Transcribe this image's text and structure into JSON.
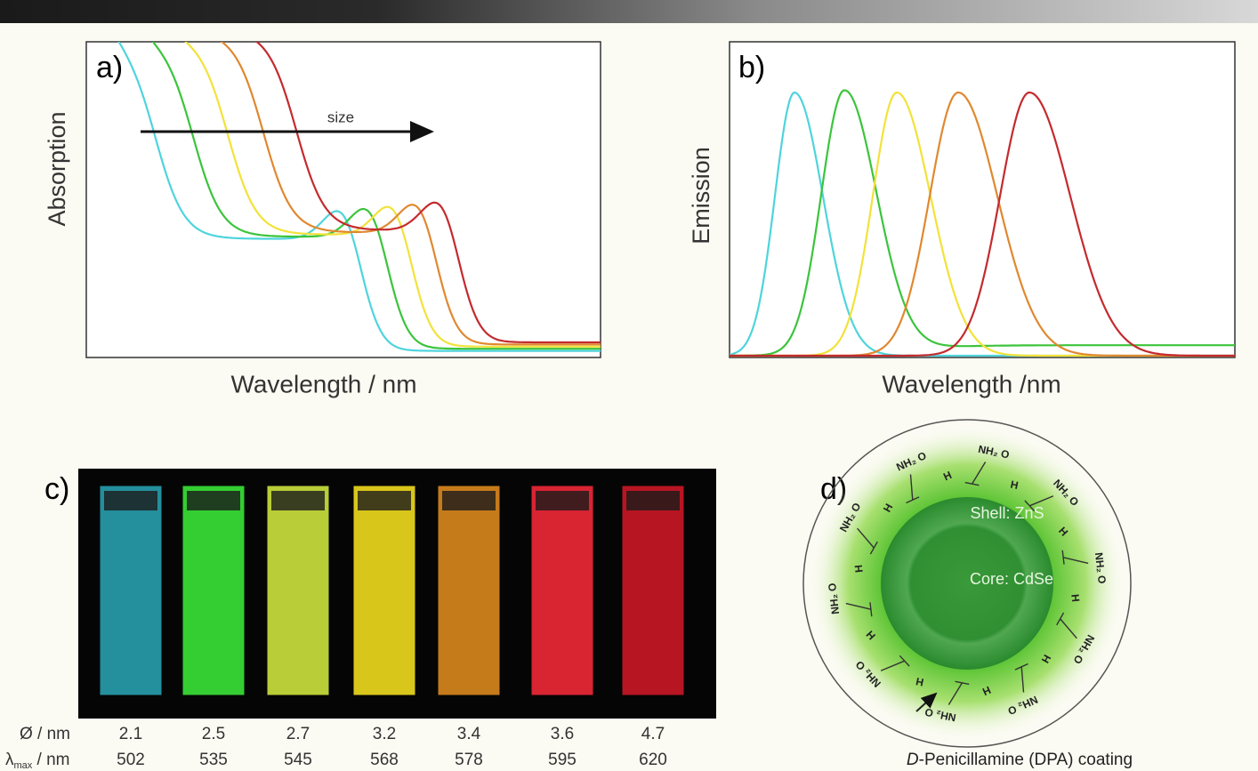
{
  "panel_a": {
    "label": "a)",
    "y_label": "Absorption",
    "x_label": "Wavelength / nm",
    "arrow_label": "size"
  },
  "panel_b": {
    "label": "b)",
    "y_label": "Emission",
    "x_label": "Wavelength /nm"
  },
  "panel_c": {
    "label": "c)",
    "diameter_label": "Ø / nm",
    "lambda_symbol": "λ",
    "lambda_sub": "max",
    "lambda_unit": " / nm",
    "diameters": [
      2.1,
      2.5,
      2.7,
      3.2,
      3.4,
      3.6,
      4.7
    ],
    "lambda_max": [
      502,
      535,
      545,
      568,
      578,
      595,
      620
    ]
  },
  "panel_d": {
    "label": "d)",
    "shell": "Shell: ZnS",
    "core": "Core: CdSe",
    "caption_italic": "D",
    "caption": "-Penicillamine (DPA) coating",
    "ligands": [
      {
        "amine": "NH₂ O",
        "hydrogen": "H"
      },
      {
        "amine": "NH₂ O",
        "hydrogen": "H"
      },
      {
        "amine": "NH₂ O",
        "hydrogen": "H"
      },
      {
        "amine": "NH₂ O",
        "hydrogen": "H"
      },
      {
        "amine": "NH₂ O",
        "hydrogen": "H"
      },
      {
        "amine": "NH₂ O",
        "hydrogen": "H"
      },
      {
        "amine": "NH₂ O",
        "hydrogen": "H"
      },
      {
        "amine": "NH₂ O",
        "hydrogen": "H"
      },
      {
        "amine": "NH₂ O",
        "hydrogen": "H"
      },
      {
        "amine": "NH₂ O",
        "hydrogen": "H"
      }
    ]
  }
}
